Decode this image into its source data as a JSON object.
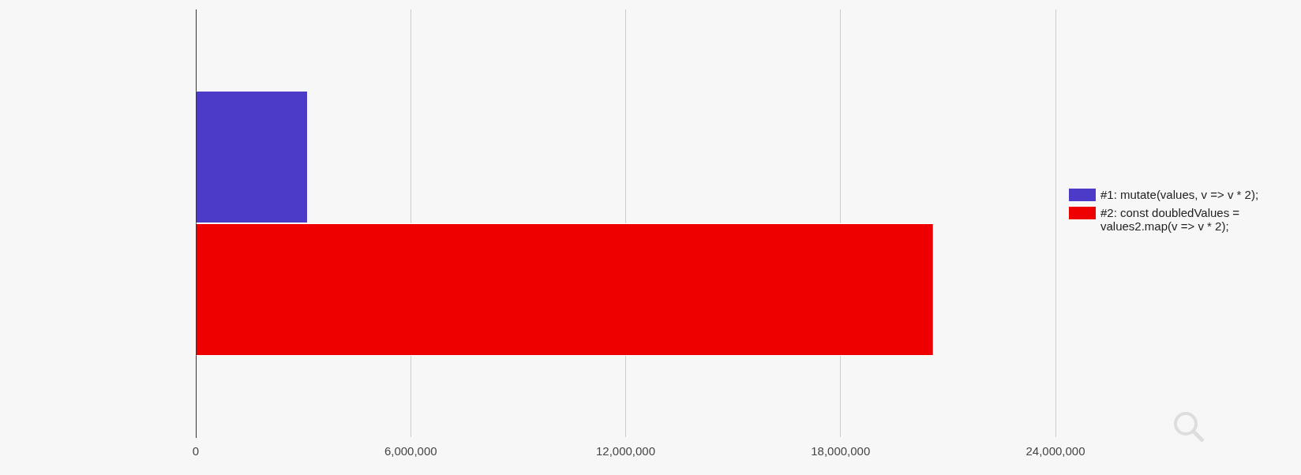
{
  "chart_data": {
    "type": "bar",
    "orientation": "horizontal",
    "categories": [
      null
    ],
    "series": [
      {
        "name": "#1: mutate(values, v => v * 2);",
        "color": "#4c3bc9",
        "values": [
          3130000
        ]
      },
      {
        "name": "#2: const doubledValues = values2.map(v => v * 2);",
        "color": "#ef0000",
        "values": [
          20600000
        ]
      }
    ],
    "xlim": [
      0,
      24000000
    ],
    "xticks": [
      0,
      {
        "value": 6000000,
        "label": "6,000,000"
      },
      {
        "value": 12000000,
        "label": "12,000,000"
      },
      {
        "value": 18000000,
        "label": "18,000,000"
      },
      {
        "value": 24000000,
        "label": "24,000,000"
      }
    ],
    "grid": "x",
    "legend": "right"
  }
}
